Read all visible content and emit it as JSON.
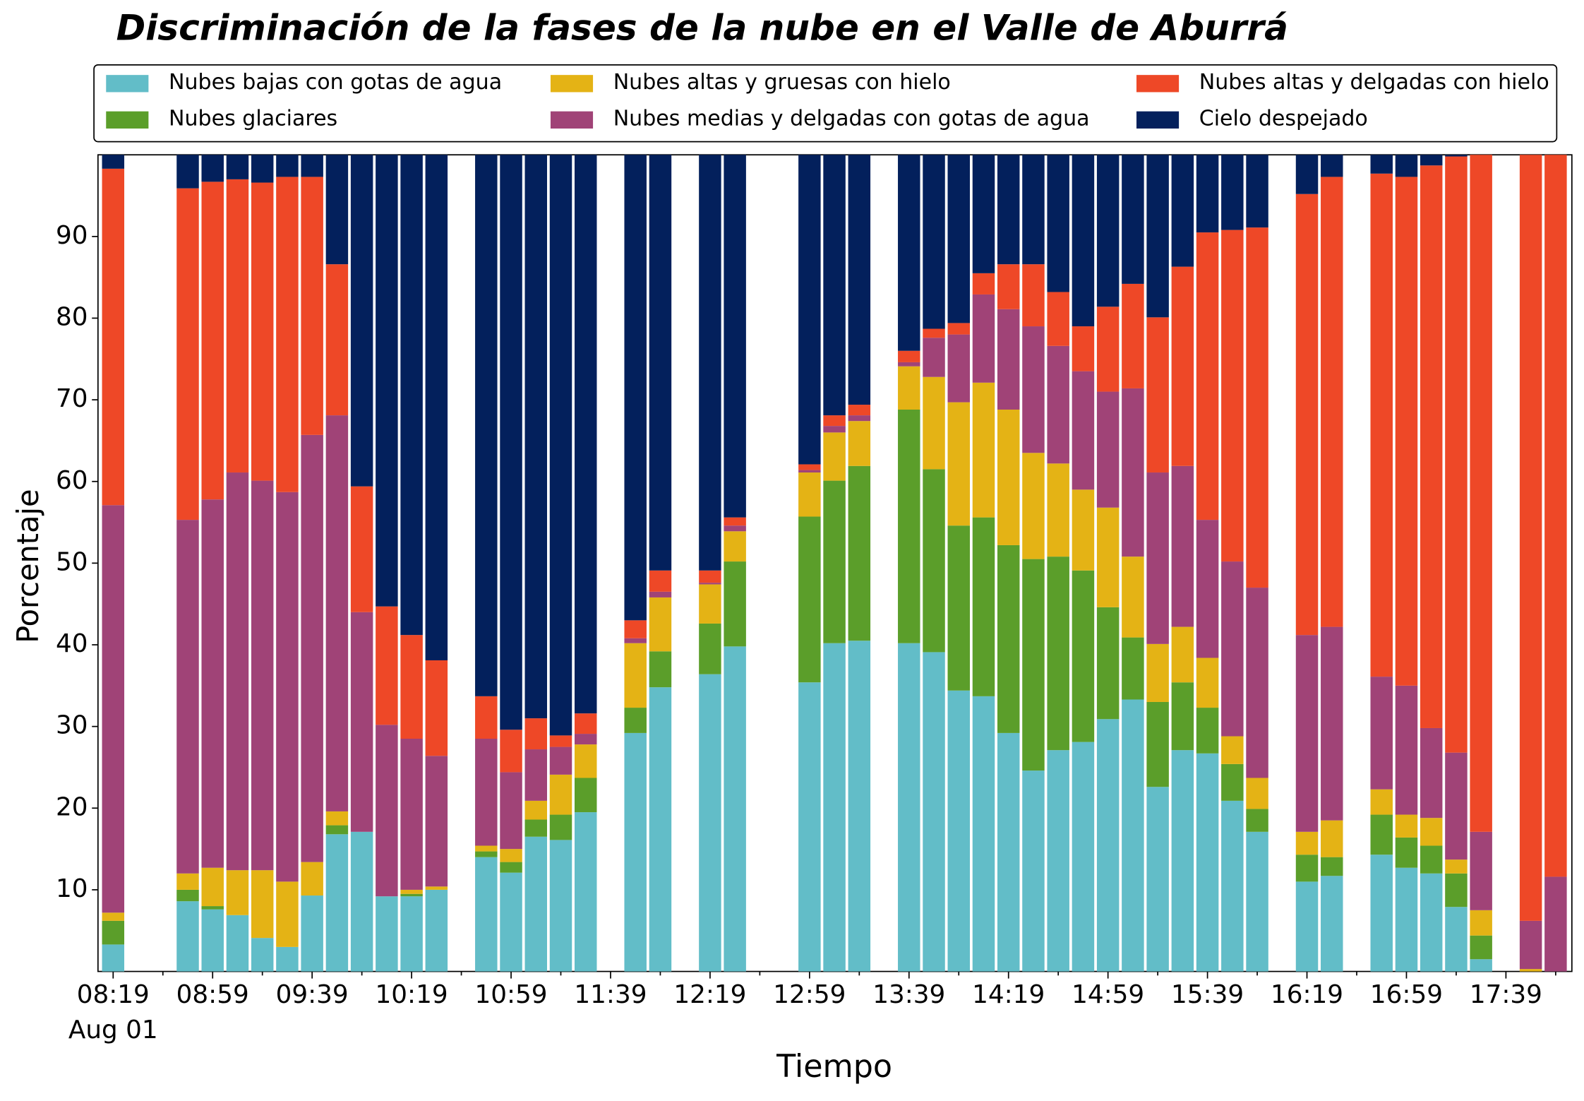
{
  "chart_data": {
    "type": "stacked_bar",
    "title": "Discriminación de la fases de la nube en el Valle de Aburrá",
    "xlabel": "Tiempo",
    "ylabel": "Porcentaje",
    "x_date_label": "Aug 01",
    "categories": [
      "08:19",
      null,
      null,
      null,
      "08:59",
      null,
      null,
      null,
      "09:39",
      null,
      null,
      null,
      "10:19",
      null,
      null,
      null,
      "10:59",
      null,
      null,
      null,
      "11:39",
      null,
      null,
      null,
      "12:19",
      null,
      null,
      null,
      "12:59",
      null,
      null,
      null,
      "13:39",
      null,
      null,
      null,
      "14:19",
      null,
      null,
      null,
      "14:59",
      null,
      null,
      null,
      "15:39",
      null,
      null,
      null,
      "16:19",
      null,
      null,
      null,
      "16:59",
      null,
      null,
      null,
      "17:39",
      null,
      null
    ],
    "ylim": [
      0,
      100
    ],
    "yticks": [
      10,
      20,
      30,
      40,
      50,
      60,
      70,
      80,
      90
    ],
    "grid": false,
    "legend": "top",
    "series": [
      {
        "name": "Nubes bajas con gotas de agua",
        "color": "#62bdc8",
        "values": [
          3.3,
          null,
          null,
          8.6,
          7.6,
          6.9,
          4.1,
          3.0,
          9.3,
          16.8,
          17.1,
          9.2,
          9.2,
          10.0,
          null,
          14.0,
          12.1,
          16.5,
          16.1,
          19.5,
          null,
          29.2,
          34.8,
          null,
          36.4,
          39.8,
          null,
          null,
          35.4,
          40.2,
          40.5,
          null,
          40.2,
          39.1,
          34.4,
          33.7,
          29.2,
          24.6,
          27.1,
          28.1,
          30.9,
          33.3,
          22.6,
          27.1,
          26.7,
          20.9,
          17.1,
          null,
          11.0,
          11.7,
          null,
          14.3,
          12.7,
          12.0,
          7.9,
          1.5,
          null,
          0,
          0
        ]
      },
      {
        "name": "Nubes glaciares",
        "color": "#5b9e2a",
        "values": [
          2.9,
          null,
          null,
          1.4,
          0.4,
          0,
          0,
          0,
          0,
          1.1,
          0,
          0,
          0.3,
          0,
          null,
          0.7,
          1.3,
          2.1,
          3.1,
          4.2,
          null,
          3.1,
          4.4,
          null,
          6.2,
          10.4,
          null,
          null,
          20.3,
          19.9,
          21.4,
          null,
          28.6,
          22.4,
          20.2,
          21.9,
          23.0,
          25.9,
          23.7,
          21.0,
          13.7,
          7.6,
          10.4,
          8.3,
          5.6,
          4.5,
          2.8,
          null,
          3.3,
          2.3,
          null,
          4.9,
          3.7,
          3.4,
          4.1,
          2.9,
          null,
          0,
          0
        ]
      },
      {
        "name": "Nubes altas y gruesas con hielo",
        "color": "#e4b315",
        "values": [
          1.0,
          null,
          null,
          2.0,
          4.7,
          5.5,
          8.3,
          8.0,
          4.1,
          1.7,
          0,
          0,
          0.5,
          0.4,
          null,
          0.7,
          1.6,
          2.3,
          4.9,
          4.1,
          null,
          7.9,
          6.6,
          null,
          4.8,
          3.7,
          null,
          null,
          5.4,
          5.9,
          5.5,
          null,
          5.3,
          11.3,
          15.1,
          16.5,
          16.6,
          13.0,
          11.4,
          9.9,
          12.2,
          9.9,
          7.1,
          6.8,
          6.1,
          3.4,
          3.8,
          null,
          2.8,
          4.5,
          null,
          3.1,
          2.8,
          3.4,
          1.7,
          3.1,
          null,
          0.3,
          0
        ]
      },
      {
        "name": "Nubes medias y delgadas con gotas de agua",
        "color": "#a04377",
        "values": [
          49.9,
          null,
          null,
          43.3,
          45.1,
          48.7,
          47.7,
          47.7,
          52.3,
          48.5,
          26.9,
          21.0,
          18.5,
          16.0,
          null,
          13.1,
          9.4,
          6.3,
          3.4,
          1.3,
          null,
          0.6,
          0.7,
          null,
          0.2,
          0.7,
          null,
          null,
          0.3,
          0.8,
          0.7,
          null,
          0.5,
          4.8,
          8.3,
          10.8,
          12.3,
          15.5,
          14.4,
          14.5,
          14.2,
          20.6,
          21.0,
          19.7,
          16.9,
          21.4,
          23.3,
          null,
          24.1,
          23.7,
          null,
          13.8,
          15.8,
          11.0,
          13.1,
          9.6,
          null,
          5.9,
          11.6
        ]
      },
      {
        "name": "Nubes altas y delgadas con hielo",
        "color": "#ee4827",
        "values": [
          41.2,
          null,
          null,
          40.6,
          38.9,
          35.9,
          36.5,
          38.6,
          31.6,
          18.5,
          15.4,
          14.5,
          12.7,
          11.7,
          null,
          5.2,
          5.2,
          3.8,
          1.4,
          2.5,
          null,
          2.2,
          2.6,
          null,
          1.5,
          1.0,
          null,
          null,
          0.7,
          1.3,
          1.3,
          null,
          1.4,
          1.1,
          1.4,
          2.6,
          5.5,
          7.6,
          6.6,
          5.5,
          10.4,
          12.8,
          19.0,
          24.4,
          35.2,
          40.6,
          44.1,
          null,
          54.0,
          55.1,
          null,
          61.6,
          62.3,
          68.9,
          73.0,
          82.9,
          null,
          93.8,
          88.4
        ]
      },
      {
        "name": "Cielo despejado",
        "color": "#03205c",
        "values": [
          1.7,
          null,
          null,
          4.1,
          3.3,
          3.0,
          3.4,
          2.7,
          2.7,
          13.4,
          40.6,
          55.3,
          58.8,
          61.9,
          null,
          66.3,
          70.4,
          69.0,
          71.1,
          68.4,
          null,
          57.0,
          50.9,
          null,
          50.9,
          44.4,
          null,
          null,
          37.9,
          31.9,
          30.6,
          null,
          24.0,
          21.3,
          20.6,
          14.5,
          13.4,
          13.4,
          16.8,
          21.0,
          18.6,
          15.8,
          19.9,
          13.7,
          9.5,
          9.2,
          8.9,
          null,
          4.8,
          2.7,
          null,
          2.3,
          2.7,
          1.3,
          0.2,
          0,
          null,
          0,
          0
        ]
      }
    ]
  }
}
